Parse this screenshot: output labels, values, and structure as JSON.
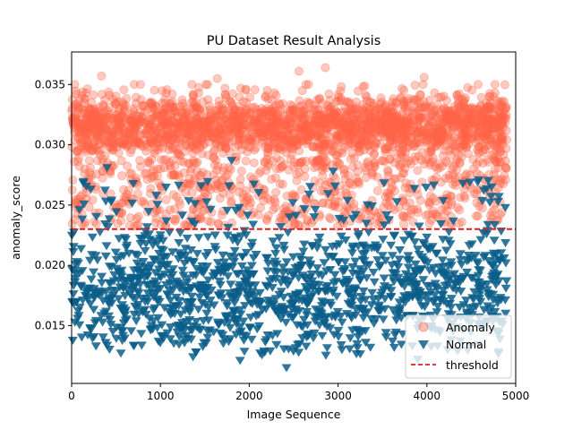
{
  "chart_data": {
    "type": "scatter",
    "title": "PU Dataset Result Analysis",
    "xlabel": "Image Sequence",
    "ylabel": "anomaly_score",
    "xlim": [
      0,
      5000
    ],
    "ylim": [
      0.0102,
      0.0377
    ],
    "x_ticks": [
      0,
      1000,
      2000,
      3000,
      4000,
      5000
    ],
    "y_ticks": [
      0.015,
      0.02,
      0.025,
      0.03,
      0.035
    ],
    "y_tick_labels": [
      "0.015",
      "0.020",
      "0.025",
      "0.030",
      "0.035"
    ],
    "grid": false,
    "legend_position": "bottom-right",
    "threshold": 0.023,
    "series": [
      {
        "name": "Anomaly",
        "marker": "circle",
        "color": "#FF6347",
        "alpha": 0.35,
        "approx_count": 3800,
        "x_range": [
          0,
          4900
        ],
        "y_core_range": [
          0.0285,
          0.0345
        ],
        "y_tail_range": [
          0.023,
          0.0285
        ],
        "sample_points": [
          [
            337,
            0.0357
          ],
          [
            2857,
            0.0364
          ],
          [
            2560,
            0.0361
          ],
          [
            3970,
            0.0356
          ],
          [
            1640,
            0.0355
          ],
          [
            705,
            0.035
          ],
          [
            3300,
            0.0349
          ]
        ]
      },
      {
        "name": "Normal",
        "marker": "triangle_down",
        "color": "#0B5E8A",
        "alpha": 0.85,
        "approx_count": 1300,
        "x_range": [
          0,
          4900
        ],
        "y_core_range": [
          0.0125,
          0.023
        ],
        "y_tail_range": [
          0.023,
          0.0285
        ],
        "sample_points": [
          [
            2419,
            0.0115
          ],
          [
            1897,
            0.0121
          ],
          [
            1367,
            0.0124
          ],
          [
            3897,
            0.0122
          ],
          [
            398,
            0.0281
          ],
          [
            1800,
            0.0287
          ],
          [
            2945,
            0.0278
          ]
        ]
      },
      {
        "name": "threshold",
        "line_style": "dashed",
        "color": "#E41A1C",
        "y": 0.023
      }
    ]
  }
}
